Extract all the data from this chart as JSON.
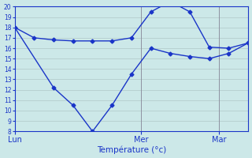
{
  "upper_x": [
    0,
    1,
    2,
    3,
    4,
    5,
    6,
    7,
    8,
    9,
    10,
    11,
    12
  ],
  "upper_y": [
    18.0,
    17.0,
    16.8,
    16.7,
    16.7,
    16.7,
    17.0,
    19.5,
    20.5,
    19.5,
    16.1,
    16.0,
    16.5
  ],
  "lower_x": [
    0,
    2,
    3,
    4,
    5,
    6,
    7,
    8,
    9,
    10,
    11,
    12
  ],
  "lower_y": [
    18.0,
    12.2,
    10.5,
    8.0,
    10.5,
    13.5,
    16.0,
    15.5,
    15.2,
    15.0,
    15.5,
    16.5
  ],
  "xtick_positions": [
    0.0,
    6.5,
    10.5
  ],
  "xtick_labels": [
    "Lun",
    "Mer",
    "Mar"
  ],
  "vline_positions": [
    0.0,
    6.5,
    10.5
  ],
  "ytick_min": 8,
  "ytick_max": 20,
  "xlabel": "Température (°c)",
  "line_color": "#1a35c8",
  "bg_color": "#cce8e8",
  "grid_color": "#b0c8c8",
  "figsize": [
    3.2,
    2.0
  ],
  "dpi": 100
}
